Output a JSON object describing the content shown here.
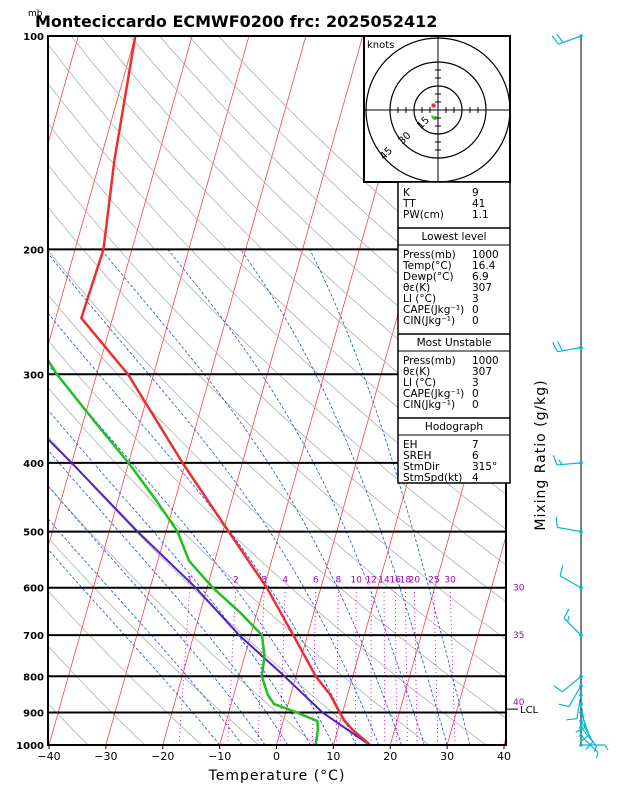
{
  "chart_data": {
    "type": "line",
    "title": "Monteciccardo ECMWF0200 frc: 2025052412",
    "pressure_unit": "mb",
    "xlabel": "Temperature (°C)",
    "right_label": "Mixing Ratio (g/kg)",
    "xlim": [
      -40,
      40
    ],
    "x_ticks": [
      "−40",
      "−30",
      "−20",
      "−10",
      "0",
      "10",
      "20",
      "30",
      "40"
    ],
    "p_levels": [
      100,
      200,
      300,
      400,
      500,
      600,
      700,
      800,
      900,
      1000
    ],
    "p_labels": [
      "100",
      "200",
      "300",
      "400",
      "500",
      "600",
      "700",
      "800",
      "900",
      "1000"
    ],
    "mixing_ratio_lines": [
      1,
      2,
      3,
      4,
      6,
      8,
      10,
      12,
      14,
      16,
      18,
      20,
      25,
      30
    ],
    "mixing_ratio_labels": [
      "1",
      "2",
      "3",
      "4",
      "6",
      "8",
      "10",
      "12",
      "14",
      "16",
      "18",
      "20",
      "25",
      "30"
    ],
    "theta_e_labels": [
      {
        "text": "30",
        "p": 600
      },
      {
        "text": "35",
        "p": 700
      },
      {
        "text": "40",
        "p": 870
      }
    ],
    "lcl_label": "LCL",
    "lcl_pressure": 890,
    "series": [
      {
        "name": "",
        "values": [
          [
            1000,
            16.4
          ],
          [
            950,
            12.5
          ],
          [
            925,
            10.8
          ],
          [
            900,
            9.5
          ],
          [
            850,
            7.0
          ],
          [
            800,
            3.5
          ],
          [
            700,
            -2.5
          ],
          [
            600,
            -9.5
          ],
          [
            500,
            -19.0
          ],
          [
            400,
            -30.5
          ],
          [
            300,
            -44.5
          ],
          [
            250,
            -55.5
          ],
          [
            200,
            -55.0
          ],
          [
            150,
            -57.5
          ],
          [
            100,
            -60.0
          ]
        ]
      },
      {
        "name": "",
        "values": [
          [
            1000,
            6.9
          ],
          [
            950,
            6.5
          ],
          [
            925,
            6.0
          ],
          [
            900,
            2.0
          ],
          [
            875,
            -2.5
          ],
          [
            850,
            -4.0
          ],
          [
            800,
            -6.0
          ],
          [
            750,
            -6.5
          ],
          [
            700,
            -8.0
          ],
          [
            650,
            -13.0
          ],
          [
            600,
            -19.0
          ],
          [
            550,
            -24.5
          ],
          [
            500,
            -28.0
          ],
          [
            450,
            -33.5
          ],
          [
            400,
            -40.0
          ],
          [
            350,
            -48.0
          ],
          [
            300,
            -57.0
          ],
          [
            250,
            -66.0
          ],
          [
            200,
            -74.0
          ],
          [
            150,
            -84.0
          ],
          [
            100,
            -93.0
          ]
        ]
      },
      {
        "name": "",
        "values": [
          [
            1000,
            16.4
          ],
          [
            900,
            6.5
          ],
          [
            800,
            -2.0
          ],
          [
            700,
            -12.0
          ],
          [
            600,
            -22.0
          ],
          [
            500,
            -35.0
          ],
          [
            400,
            -50.0
          ],
          [
            300,
            -70.0
          ],
          [
            200,
            -98.0
          ],
          [
            100,
            -140.0
          ]
        ]
      }
    ],
    "colors": {
      "temperature": "#e83030",
      "dewpoint": "#20c020",
      "parcel": "#5020c8",
      "isotherm": "#ff4040",
      "dry_adiabat": "#b0b0b0",
      "moist_adiabat": "#1850e8",
      "mixing_ratio": "#a000c0",
      "barb": "#00b8d8"
    },
    "winds_kt": [
      {
        "p": 1000,
        "speed": 5,
        "dir": 90
      },
      {
        "p": 970,
        "speed": 7,
        "dir": 135
      },
      {
        "p": 945,
        "speed": 8,
        "dir": 140
      },
      {
        "p": 925,
        "speed": 10,
        "dir": 150
      },
      {
        "p": 900,
        "speed": 10,
        "dir": 160
      },
      {
        "p": 875,
        "speed": 10,
        "dir": 170
      },
      {
        "p": 850,
        "speed": 10,
        "dir": 190
      },
      {
        "p": 825,
        "speed": 10,
        "dir": 210
      },
      {
        "p": 800,
        "speed": 10,
        "dir": 230
      },
      {
        "p": 700,
        "speed": 15,
        "dir": 315
      },
      {
        "p": 600,
        "speed": 10,
        "dir": 300
      },
      {
        "p": 500,
        "speed": 10,
        "dir": 280
      },
      {
        "p": 400,
        "speed": 15,
        "dir": 265
      },
      {
        "p": 275,
        "speed": 20,
        "dir": 260
      },
      {
        "p": 100,
        "speed": 20,
        "dir": 250
      }
    ],
    "hodograph": {
      "label": "knots",
      "ring_labels": [
        "15",
        "30",
        "45"
      ],
      "points": [
        [
          -1.0,
          4.0
        ],
        [
          -3.0,
          5.0
        ],
        [
          -4.0,
          3.5
        ],
        [
          -3.0,
          4.5
        ],
        [
          -1.5,
          4.5
        ],
        [
          -2.5,
          5.5
        ],
        [
          -1.0,
          6.0
        ]
      ],
      "storm_motion": [
        -2.8,
        -2.8
      ]
    }
  },
  "panel": {
    "indices": [
      {
        "label": "K",
        "value": "9"
      },
      {
        "label": "TT",
        "value": "41"
      },
      {
        "label": "PW(cm)",
        "value": "1.1"
      }
    ],
    "lowest": {
      "title": "Lowest level",
      "rows": [
        {
          "label": "Press(mb)",
          "value": "1000"
        },
        {
          "label": "Temp(°C)",
          "value": "16.4"
        },
        {
          "label": "Dewp(°C)",
          "value": "6.9"
        },
        {
          "label": "θε(K)",
          "value": "307"
        },
        {
          "label": "LI (°C)",
          "value": "3"
        },
        {
          "label": "CAPE(Jkg⁻¹)",
          "value": "0"
        },
        {
          "label": "CIN(Jkg⁻¹)",
          "value": "0"
        }
      ]
    },
    "unstable": {
      "title": "Most Unstable",
      "rows": [
        {
          "label": "Press(mb)",
          "value": "1000"
        },
        {
          "label": "θε(K)",
          "value": "307"
        },
        {
          "label": "LI (°C)",
          "value": "3"
        },
        {
          "label": "CAPE(Jkg⁻¹)",
          "value": "0"
        },
        {
          "label": "CIN(Jkg⁻¹)",
          "value": "0"
        }
      ]
    },
    "hodo_box": {
      "title": "Hodograph",
      "rows": [
        {
          "label": "EH",
          "value": "7"
        },
        {
          "label": "SREH",
          "value": "6"
        },
        {
          "label": "StmDir",
          "value": "315°"
        },
        {
          "label": "StmSpd(kt)",
          "value": "4"
        }
      ]
    }
  }
}
